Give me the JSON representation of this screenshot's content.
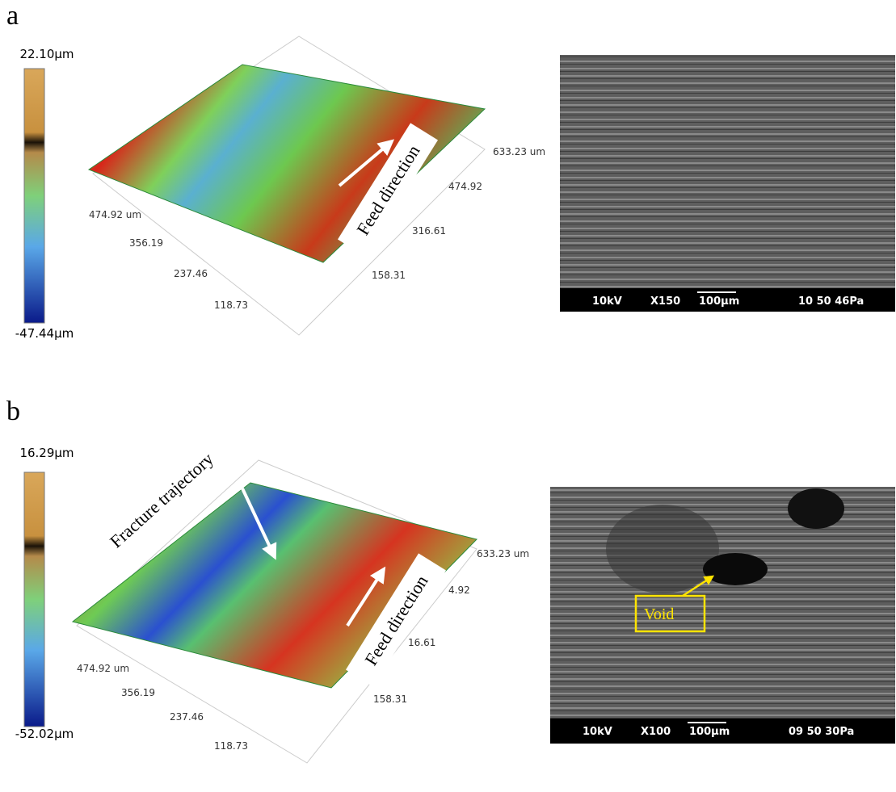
{
  "panels": [
    {
      "label": "a",
      "colorbar": {
        "max": "22.10µm",
        "min": "-47.44µm"
      },
      "x_axis_labels": [
        "474.92 um",
        "356.19",
        "237.46",
        "118.73"
      ],
      "y_axis_labels": [
        "633.23 um",
        "474.92",
        "316.61",
        "158.31"
      ],
      "annotations": [
        "Feed direction"
      ],
      "sem": {
        "voltage": "10kV",
        "magnification": "X150",
        "scale": "100µm",
        "info": "10 50  46Pa"
      }
    },
    {
      "label": "b",
      "colorbar": {
        "max": "16.29µm",
        "min": "-52.02µm"
      },
      "x_axis_labels": [
        "474.92 um",
        "356.19",
        "237.46",
        "118.73"
      ],
      "y_axis_labels": [
        "633.23 um",
        "4.92",
        "16.61",
        "158.31"
      ],
      "annotations": [
        "Fracture trajectory",
        "Feed direction"
      ],
      "sem": {
        "voltage": "10kV",
        "magnification": "X100",
        "scale": "100µm",
        "info": "09 50  30Pa",
        "callout": "Void"
      }
    }
  ]
}
